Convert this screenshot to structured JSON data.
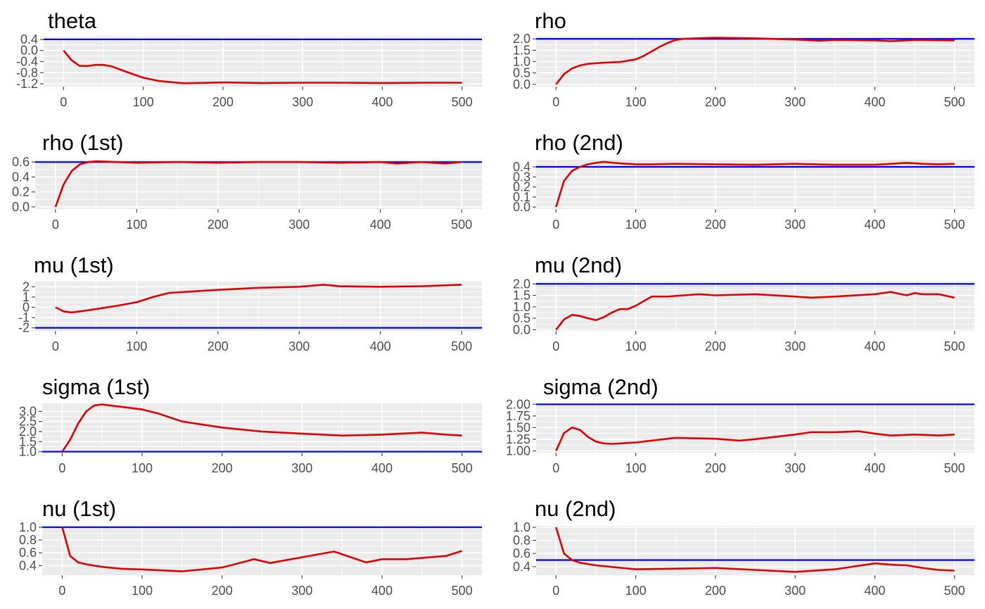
{
  "colors": {
    "trace": "#e00000",
    "reference": "#0000ee",
    "panel_bg": "#ebebeb",
    "grid": "#ffffff",
    "tick": "#4d4d4d"
  },
  "chart_data": [
    {
      "type": "line",
      "title": "theta",
      "xlabel": "",
      "ylabel": "",
      "xlim": [
        -25,
        525
      ],
      "ylim": [
        -1.3,
        0.5
      ],
      "xticks": [
        "0",
        "100",
        "200",
        "300",
        "400",
        "500"
      ],
      "yticks": [
        {
          "v": 0.4,
          "label": "0.4"
        },
        {
          "v": 0.0,
          "label": "0.0"
        },
        {
          "v": -0.4,
          "label": "-0.4"
        },
        {
          "v": -0.8,
          "label": "-0.8"
        },
        {
          "v": -1.2,
          "label": "-1.2"
        }
      ],
      "reference": 0.4,
      "series": [
        {
          "x": [
            0,
            10,
            20,
            30,
            40,
            50,
            60,
            80,
            100,
            120,
            150,
            200,
            250,
            300,
            350,
            400,
            450,
            500
          ],
          "y": [
            0.0,
            -0.35,
            -0.55,
            -0.56,
            -0.52,
            -0.52,
            -0.57,
            -0.78,
            -0.98,
            -1.1,
            -1.18,
            -1.15,
            -1.17,
            -1.16,
            -1.16,
            -1.17,
            -1.16,
            -1.16
          ]
        }
      ]
    },
    {
      "type": "line",
      "title": "rho",
      "xlabel": "",
      "ylabel": "",
      "xlim": [
        -25,
        525
      ],
      "ylim": [
        -0.1,
        2.1
      ],
      "xticks": [
        "0",
        "100",
        "200",
        "300",
        "400",
        "500"
      ],
      "yticks": [
        {
          "v": 2.0,
          "label": "2.0"
        },
        {
          "v": 1.5,
          "label": "1.5"
        },
        {
          "v": 1.0,
          "label": "1.0"
        },
        {
          "v": 0.5,
          "label": "0.5"
        },
        {
          "v": 0.0,
          "label": "0.0"
        }
      ],
      "reference": 2.0,
      "series": [
        {
          "x": [
            0,
            10,
            20,
            30,
            40,
            50,
            60,
            80,
            100,
            110,
            120,
            130,
            140,
            150,
            160,
            180,
            200,
            250,
            300,
            330,
            350,
            400,
            420,
            450,
            500
          ],
          "y": [
            0.0,
            0.45,
            0.7,
            0.83,
            0.9,
            0.93,
            0.95,
            0.98,
            1.1,
            1.25,
            1.45,
            1.65,
            1.82,
            1.95,
            2.0,
            2.03,
            2.05,
            2.02,
            1.97,
            1.92,
            1.95,
            1.93,
            1.9,
            1.95,
            1.93
          ]
        }
      ]
    },
    {
      "type": "line",
      "title": "rho (1st)",
      "xlabel": "",
      "ylabel": "",
      "xlim": [
        -25,
        525
      ],
      "ylim": [
        -0.03,
        0.63
      ],
      "xticks": [
        "0",
        "100",
        "200",
        "300",
        "400",
        "500"
      ],
      "yticks": [
        {
          "v": 0.6,
          "label": "0.6"
        },
        {
          "v": 0.4,
          "label": "0.4"
        },
        {
          "v": 0.2,
          "label": "0.2"
        },
        {
          "v": 0.0,
          "label": "0.0"
        }
      ],
      "reference": 0.6,
      "series": [
        {
          "x": [
            0,
            10,
            20,
            30,
            40,
            50,
            75,
            100,
            150,
            200,
            250,
            300,
            350,
            400,
            420,
            450,
            480,
            500
          ],
          "y": [
            0.0,
            0.3,
            0.48,
            0.57,
            0.6,
            0.61,
            0.6,
            0.59,
            0.6,
            0.59,
            0.6,
            0.6,
            0.59,
            0.6,
            0.58,
            0.6,
            0.58,
            0.6
          ]
        }
      ]
    },
    {
      "type": "line",
      "title": "rho (2nd)",
      "xlabel": "",
      "ylabel": "",
      "xlim": [
        -25,
        525
      ],
      "ylim": [
        -0.02,
        0.47
      ],
      "xticks": [
        "0",
        "100",
        "200",
        "300",
        "400",
        "500"
      ],
      "yticks": [
        {
          "v": 0.4,
          "label": "0.4"
        },
        {
          "v": 0.3,
          "label": "0.3"
        },
        {
          "v": 0.2,
          "label": "0.2"
        },
        {
          "v": 0.1,
          "label": "0.1"
        },
        {
          "v": 0.0,
          "label": "0.0"
        }
      ],
      "reference": 0.4,
      "series": [
        {
          "x": [
            0,
            10,
            20,
            30,
            40,
            50,
            60,
            80,
            100,
            120,
            150,
            200,
            250,
            300,
            350,
            400,
            440,
            460,
            480,
            500
          ],
          "y": [
            0.0,
            0.26,
            0.36,
            0.4,
            0.425,
            0.44,
            0.45,
            0.435,
            0.425,
            0.425,
            0.43,
            0.425,
            0.42,
            0.43,
            0.42,
            0.42,
            0.44,
            0.43,
            0.425,
            0.43
          ]
        }
      ]
    },
    {
      "type": "line",
      "title": "mu (1st)",
      "xlabel": "",
      "ylabel": "",
      "xlim": [
        -25,
        525
      ],
      "ylim": [
        -2.3,
        2.5
      ],
      "xticks": [
        "0",
        "100",
        "200",
        "300",
        "400",
        "500"
      ],
      "yticks": [
        {
          "v": 2,
          "label": "2"
        },
        {
          "v": 1,
          "label": "1"
        },
        {
          "v": 0,
          "label": "0"
        },
        {
          "v": -1,
          "label": "-1"
        },
        {
          "v": -2,
          "label": "-2"
        }
      ],
      "reference": -2,
      "series": [
        {
          "x": [
            0,
            10,
            20,
            40,
            60,
            80,
            100,
            120,
            140,
            160,
            200,
            250,
            300,
            330,
            350,
            400,
            450,
            500
          ],
          "y": [
            0.0,
            -0.4,
            -0.5,
            -0.3,
            -0.05,
            0.2,
            0.5,
            1.0,
            1.4,
            1.5,
            1.7,
            1.9,
            2.0,
            2.2,
            2.05,
            2.0,
            2.05,
            2.2
          ]
        }
      ]
    },
    {
      "type": "line",
      "title": "mu (2nd)",
      "xlabel": "",
      "ylabel": "",
      "xlim": [
        -25,
        525
      ],
      "ylim": [
        -0.05,
        2.1
      ],
      "xticks": [
        "0",
        "100",
        "200",
        "300",
        "400",
        "500"
      ],
      "yticks": [
        {
          "v": 2.0,
          "label": "2.0"
        },
        {
          "v": 1.5,
          "label": "1.5"
        },
        {
          "v": 1.0,
          "label": "1.0"
        },
        {
          "v": 0.5,
          "label": "0.5"
        },
        {
          "v": 0.0,
          "label": "0.0"
        }
      ],
      "reference": 2.0,
      "series": [
        {
          "x": [
            0,
            10,
            20,
            30,
            40,
            50,
            60,
            70,
            80,
            90,
            100,
            120,
            140,
            160,
            180,
            200,
            250,
            300,
            320,
            350,
            400,
            420,
            440,
            450,
            460,
            480,
            500
          ],
          "y": [
            0.0,
            0.45,
            0.65,
            0.6,
            0.5,
            0.42,
            0.55,
            0.75,
            0.9,
            0.9,
            1.05,
            1.45,
            1.45,
            1.5,
            1.55,
            1.5,
            1.55,
            1.45,
            1.4,
            1.45,
            1.55,
            1.65,
            1.5,
            1.6,
            1.55,
            1.55,
            1.4
          ]
        }
      ]
    },
    {
      "type": "line",
      "title": "sigma (1st)",
      "xlabel": "",
      "ylabel": "",
      "xlim": [
        -25,
        525
      ],
      "ylim": [
        0.95,
        3.4
      ],
      "xticks": [
        "0",
        "100",
        "200",
        "300",
        "400",
        "500"
      ],
      "yticks": [
        {
          "v": 3.0,
          "label": "3.0"
        },
        {
          "v": 2.5,
          "label": "2.5"
        },
        {
          "v": 2.0,
          "label": "2.0"
        },
        {
          "v": 1.5,
          "label": "1.5"
        },
        {
          "v": 1.0,
          "label": "1.0"
        }
      ],
      "reference": 1.0,
      "series": [
        {
          "x": [
            0,
            10,
            20,
            30,
            40,
            50,
            60,
            80,
            100,
            120,
            150,
            200,
            250,
            300,
            350,
            400,
            450,
            480,
            500
          ],
          "y": [
            1.0,
            1.6,
            2.4,
            3.0,
            3.3,
            3.35,
            3.3,
            3.2,
            3.1,
            2.9,
            2.5,
            2.2,
            2.0,
            1.9,
            1.8,
            1.85,
            1.95,
            1.85,
            1.8
          ]
        }
      ]
    },
    {
      "type": "line",
      "title": "sigma (2nd)",
      "xlabel": "",
      "ylabel": "",
      "xlim": [
        -25,
        525
      ],
      "ylim": [
        0.96,
        2.02
      ],
      "xticks": [
        "0",
        "100",
        "200",
        "300",
        "400",
        "500"
      ],
      "yticks": [
        {
          "v": 2.0,
          "label": "2.00"
        },
        {
          "v": 1.75,
          "label": "1.75"
        },
        {
          "v": 1.5,
          "label": "1.50"
        },
        {
          "v": 1.25,
          "label": "1.25"
        },
        {
          "v": 1.0,
          "label": "1.00"
        }
      ],
      "reference": 2.0,
      "series": [
        {
          "x": [
            0,
            10,
            20,
            30,
            40,
            50,
            60,
            70,
            100,
            120,
            150,
            200,
            230,
            250,
            300,
            320,
            350,
            380,
            400,
            420,
            450,
            480,
            500
          ],
          "y": [
            1.0,
            1.38,
            1.5,
            1.45,
            1.3,
            1.2,
            1.16,
            1.15,
            1.18,
            1.22,
            1.28,
            1.26,
            1.22,
            1.25,
            1.35,
            1.4,
            1.4,
            1.42,
            1.37,
            1.33,
            1.35,
            1.33,
            1.35
          ]
        }
      ]
    },
    {
      "type": "line",
      "title": "nu (1st)",
      "xlabel": "",
      "ylabel": "",
      "xlim": [
        -25,
        525
      ],
      "ylim": [
        0.25,
        1.02
      ],
      "xticks": [
        "0",
        "100",
        "200",
        "300",
        "400",
        "500"
      ],
      "yticks": [
        {
          "v": 1.0,
          "label": "1.0"
        },
        {
          "v": 0.8,
          "label": "0.8"
        },
        {
          "v": 0.6,
          "label": "0.6"
        },
        {
          "v": 0.4,
          "label": "0.4"
        }
      ],
      "reference": 1.0,
      "series": [
        {
          "x": [
            0,
            10,
            20,
            30,
            40,
            50,
            75,
            100,
            150,
            200,
            240,
            260,
            300,
            340,
            380,
            400,
            430,
            460,
            480,
            500
          ],
          "y": [
            1.0,
            0.55,
            0.45,
            0.42,
            0.4,
            0.38,
            0.35,
            0.34,
            0.31,
            0.37,
            0.5,
            0.44,
            0.53,
            0.62,
            0.45,
            0.5,
            0.5,
            0.53,
            0.55,
            0.63
          ]
        }
      ]
    },
    {
      "type": "line",
      "title": "nu (2nd)",
      "xlabel": "",
      "ylabel": "",
      "xlim": [
        -25,
        525
      ],
      "ylim": [
        0.27,
        1.02
      ],
      "xticks": [
        "0",
        "100",
        "200",
        "300",
        "400",
        "500"
      ],
      "yticks": [
        {
          "v": 1.0,
          "label": "1.0"
        },
        {
          "v": 0.8,
          "label": "0.8"
        },
        {
          "v": 0.6,
          "label": "0.6"
        },
        {
          "v": 0.4,
          "label": "0.4"
        }
      ],
      "reference": 0.5,
      "series": [
        {
          "x": [
            0,
            10,
            20,
            30,
            40,
            50,
            75,
            100,
            150,
            200,
            250,
            300,
            350,
            400,
            420,
            440,
            460,
            480,
            500
          ],
          "y": [
            1.0,
            0.6,
            0.5,
            0.46,
            0.44,
            0.42,
            0.39,
            0.36,
            0.37,
            0.38,
            0.35,
            0.32,
            0.36,
            0.45,
            0.43,
            0.42,
            0.38,
            0.35,
            0.34
          ]
        }
      ]
    }
  ]
}
